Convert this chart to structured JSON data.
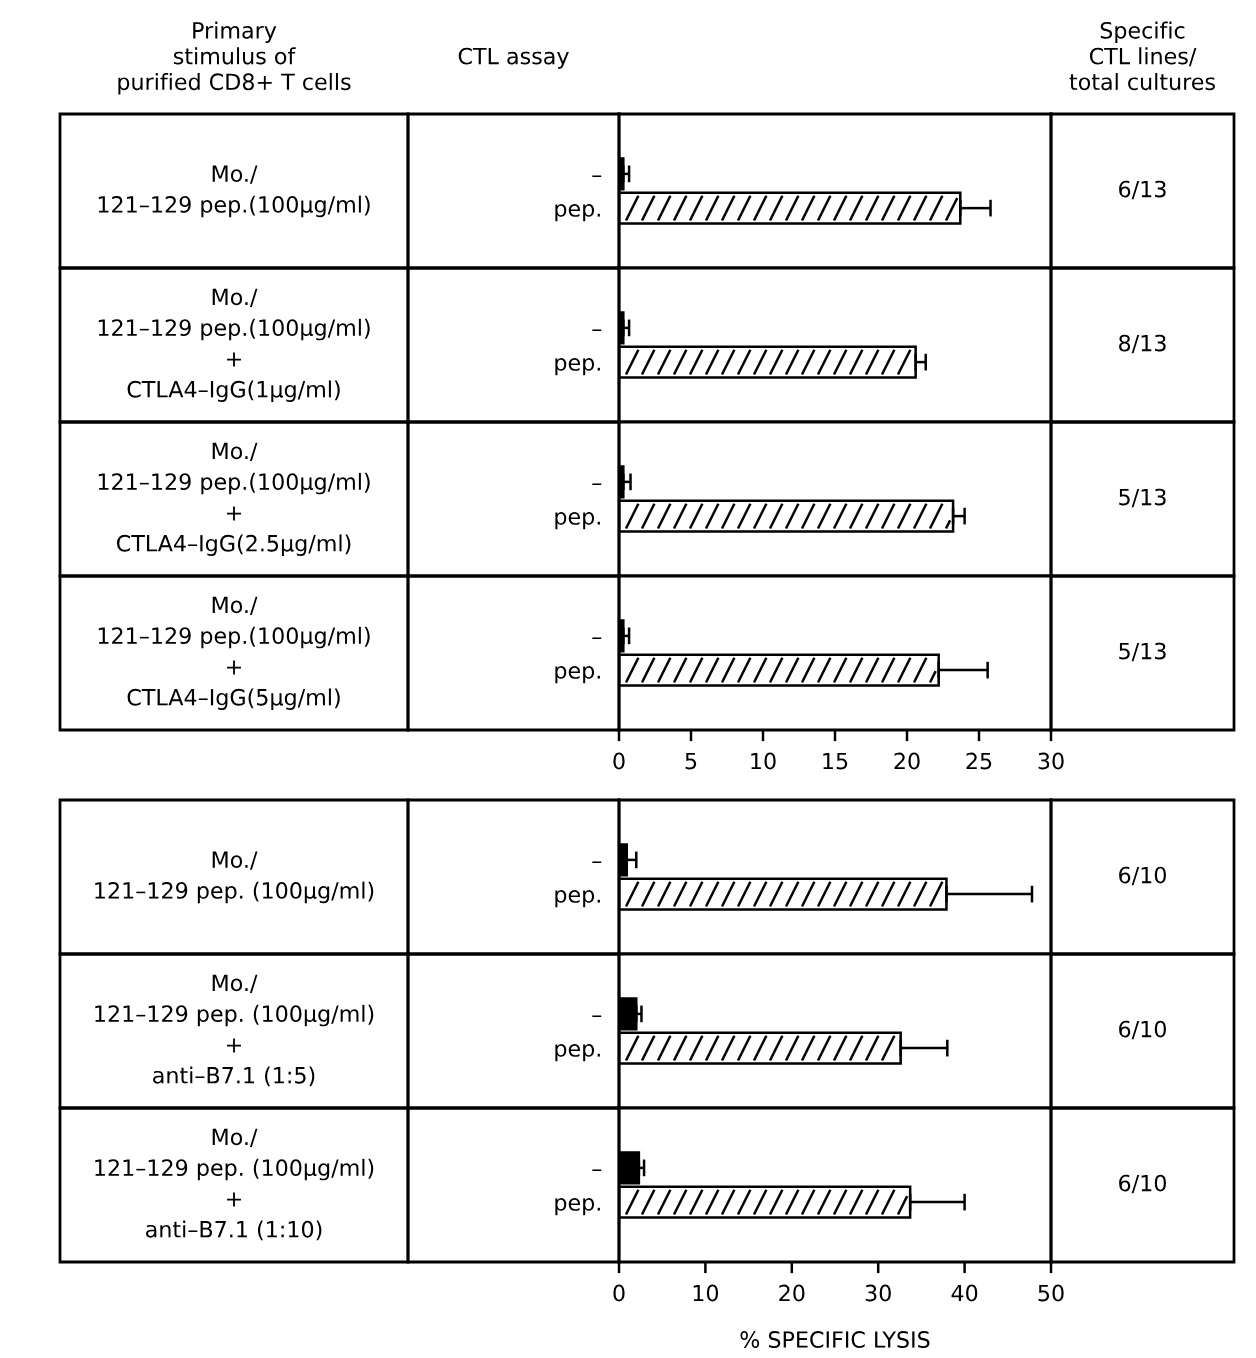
{
  "chart_data": [
    {
      "type": "bar",
      "orientation": "horizontal",
      "categories": [
        "–",
        "pep."
      ],
      "values": [
        0.3,
        23.7
      ],
      "errors": [
        [
          0.3,
          0.7
        ],
        [
          23.7,
          25.8
        ]
      ],
      "colors": [
        "#000000",
        "#ffffff"
      ],
      "xlim": [
        0,
        30
      ],
      "tick_labels": "y",
      "ylabel": "Mo./\n121–129 pep.(100μg/ml)",
      "y2label": "6/13",
      "annotations": [
        "Primary\nstimulus of\npurified CD8+ T cells",
        "CTL assay",
        "Specific\nCTL lines/\ntotal cultures"
      ]
    },
    {
      "type": "bar",
      "orientation": "horizontal",
      "categories": [
        "–",
        "pep."
      ],
      "values": [
        0.3,
        20.6
      ],
      "errors": [
        [
          0.3,
          0.7
        ],
        [
          20.6,
          21.3
        ]
      ],
      "colors": [
        "#000000",
        "#ffffff"
      ],
      "xlim": [
        0,
        30
      ],
      "tick_labels": "y",
      "ylabel": "Mo./\n121–129 pep.(100μg/ml)\n+\nCTLA4–IgG(1μg/ml)",
      "y2label": "8/13"
    },
    {
      "type": "bar",
      "orientation": "horizontal",
      "categories": [
        "–",
        "pep."
      ],
      "values": [
        0.3,
        23.2
      ],
      "errors": [
        [
          0.3,
          0.8
        ],
        [
          23.2,
          24.0
        ]
      ],
      "colors": [
        "#000000",
        "#ffffff"
      ],
      "xlim": [
        0,
        30
      ],
      "tick_labels": "y",
      "ylabel": "Mo./\n121–129 pep.(100μg/ml)\n+\nCTLA4–IgG(2.5μg/ml)",
      "y2label": "5/13"
    },
    {
      "type": "bar",
      "orientation": "horizontal",
      "categories": [
        "–",
        "pep."
      ],
      "values": [
        0.3,
        22.2
      ],
      "errors": [
        [
          0.3,
          0.7
        ],
        [
          22.2,
          25.6
        ]
      ],
      "colors": [
        "#000000",
        "#ffffff"
      ],
      "xlim": [
        0,
        30
      ],
      "xticks": [
        0,
        5,
        10,
        15,
        20,
        25,
        30
      ],
      "ylabel": "Mo./\n121–129 pep.(100μg/ml)\n+\nCTLA4–IgG(5μg/ml)",
      "y2label": "5/13"
    },
    {
      "type": "bar",
      "orientation": "horizontal",
      "categories": [
        "–",
        "pep."
      ],
      "values": [
        0.9,
        37.9
      ],
      "errors": [
        [
          0.9,
          2.0
        ],
        [
          37.9,
          47.8
        ]
      ],
      "colors": [
        "#000000",
        "#ffffff"
      ],
      "xlim": [
        0,
        50
      ],
      "tick_labels": "y",
      "ylabel": "Mo./\n121–129 pep. (100μg/ml)",
      "y2label": "6/10"
    },
    {
      "type": "bar",
      "orientation": "horizontal",
      "categories": [
        "–",
        "pep."
      ],
      "values": [
        2.0,
        32.6
      ],
      "errors": [
        [
          2.0,
          2.6
        ],
        [
          32.6,
          38
        ]
      ],
      "colors": [
        "#000000",
        "#ffffff"
      ],
      "xlim": [
        0,
        50
      ],
      "tick_labels": "y",
      "ylabel": "Mo./\n121–129 pep. (100μg/ml)\n+\nanti–B7.1 (1:5)",
      "y2label": "6/10"
    },
    {
      "type": "bar",
      "orientation": "horizontal",
      "categories": [
        "–",
        "pep."
      ],
      "values": [
        2.3,
        33.7
      ],
      "errors": [
        [
          2.3,
          2.9
        ],
        [
          33.7,
          40
        ]
      ],
      "colors": [
        "#000000",
        "#ffffff"
      ],
      "xlim": [
        0,
        50
      ],
      "xticks": [
        0,
        10,
        20,
        30,
        40,
        50
      ],
      "xlabel": "% SPECIFIC LYSIS",
      "ylabel": "Mo./\n121–129 pep. (100μg/ml)\n+\nanti–B7.1 (1:10)",
      "y2label": "6/10"
    }
  ]
}
